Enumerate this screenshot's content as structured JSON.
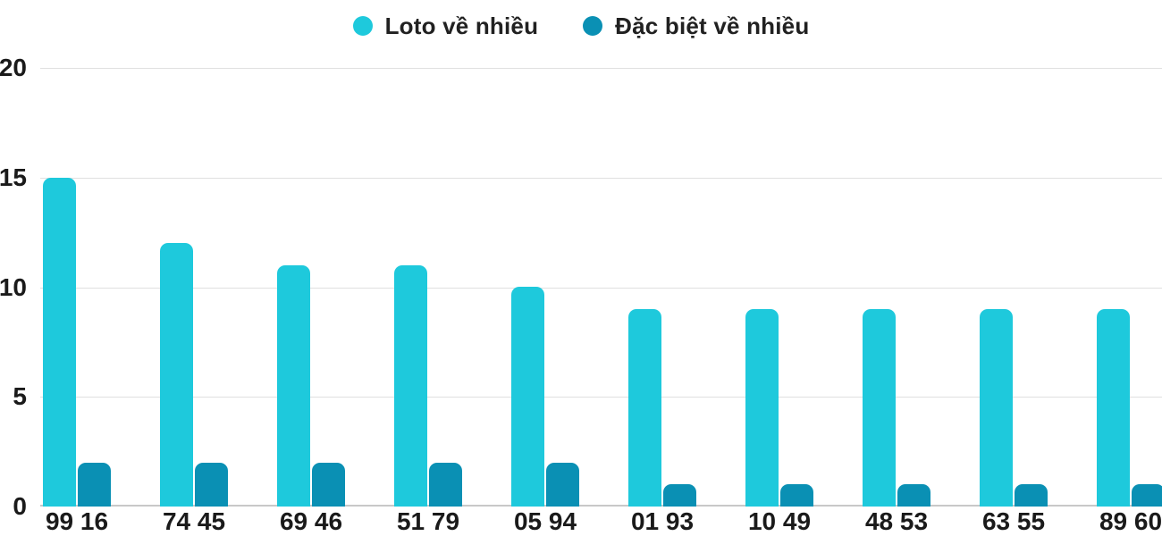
{
  "chart_data": {
    "type": "bar",
    "categories": [
      "99 16",
      "74 45",
      "69 46",
      "51 79",
      "05 94",
      "01 93",
      "10 49",
      "48 53",
      "63 55",
      "89 60"
    ],
    "series": [
      {
        "name": "Loto về nhiều",
        "color": "#1ec9dc",
        "values": [
          15,
          12,
          11,
          11,
          10,
          9,
          9,
          9,
          9,
          9
        ]
      },
      {
        "name": "Đặc biệt về nhiều",
        "color": "#0a90b4",
        "values": [
          2,
          2,
          2,
          2,
          2,
          1,
          1,
          1,
          1,
          1
        ]
      }
    ],
    "title": "",
    "xlabel": "",
    "ylabel": "",
    "ylim": [
      0,
      20
    ],
    "yticks": [
      0,
      5,
      10,
      15,
      20
    ],
    "grid": true,
    "legend_position": "top",
    "colors": {
      "text": "#1a1a1a",
      "gridline": "#e0e0e0",
      "baseline": "#c8c8c8",
      "background": "#ffffff"
    }
  },
  "legend": {
    "items": [
      {
        "label": "Loto về nhiều"
      },
      {
        "label": "Đặc biệt về nhiều"
      }
    ]
  }
}
